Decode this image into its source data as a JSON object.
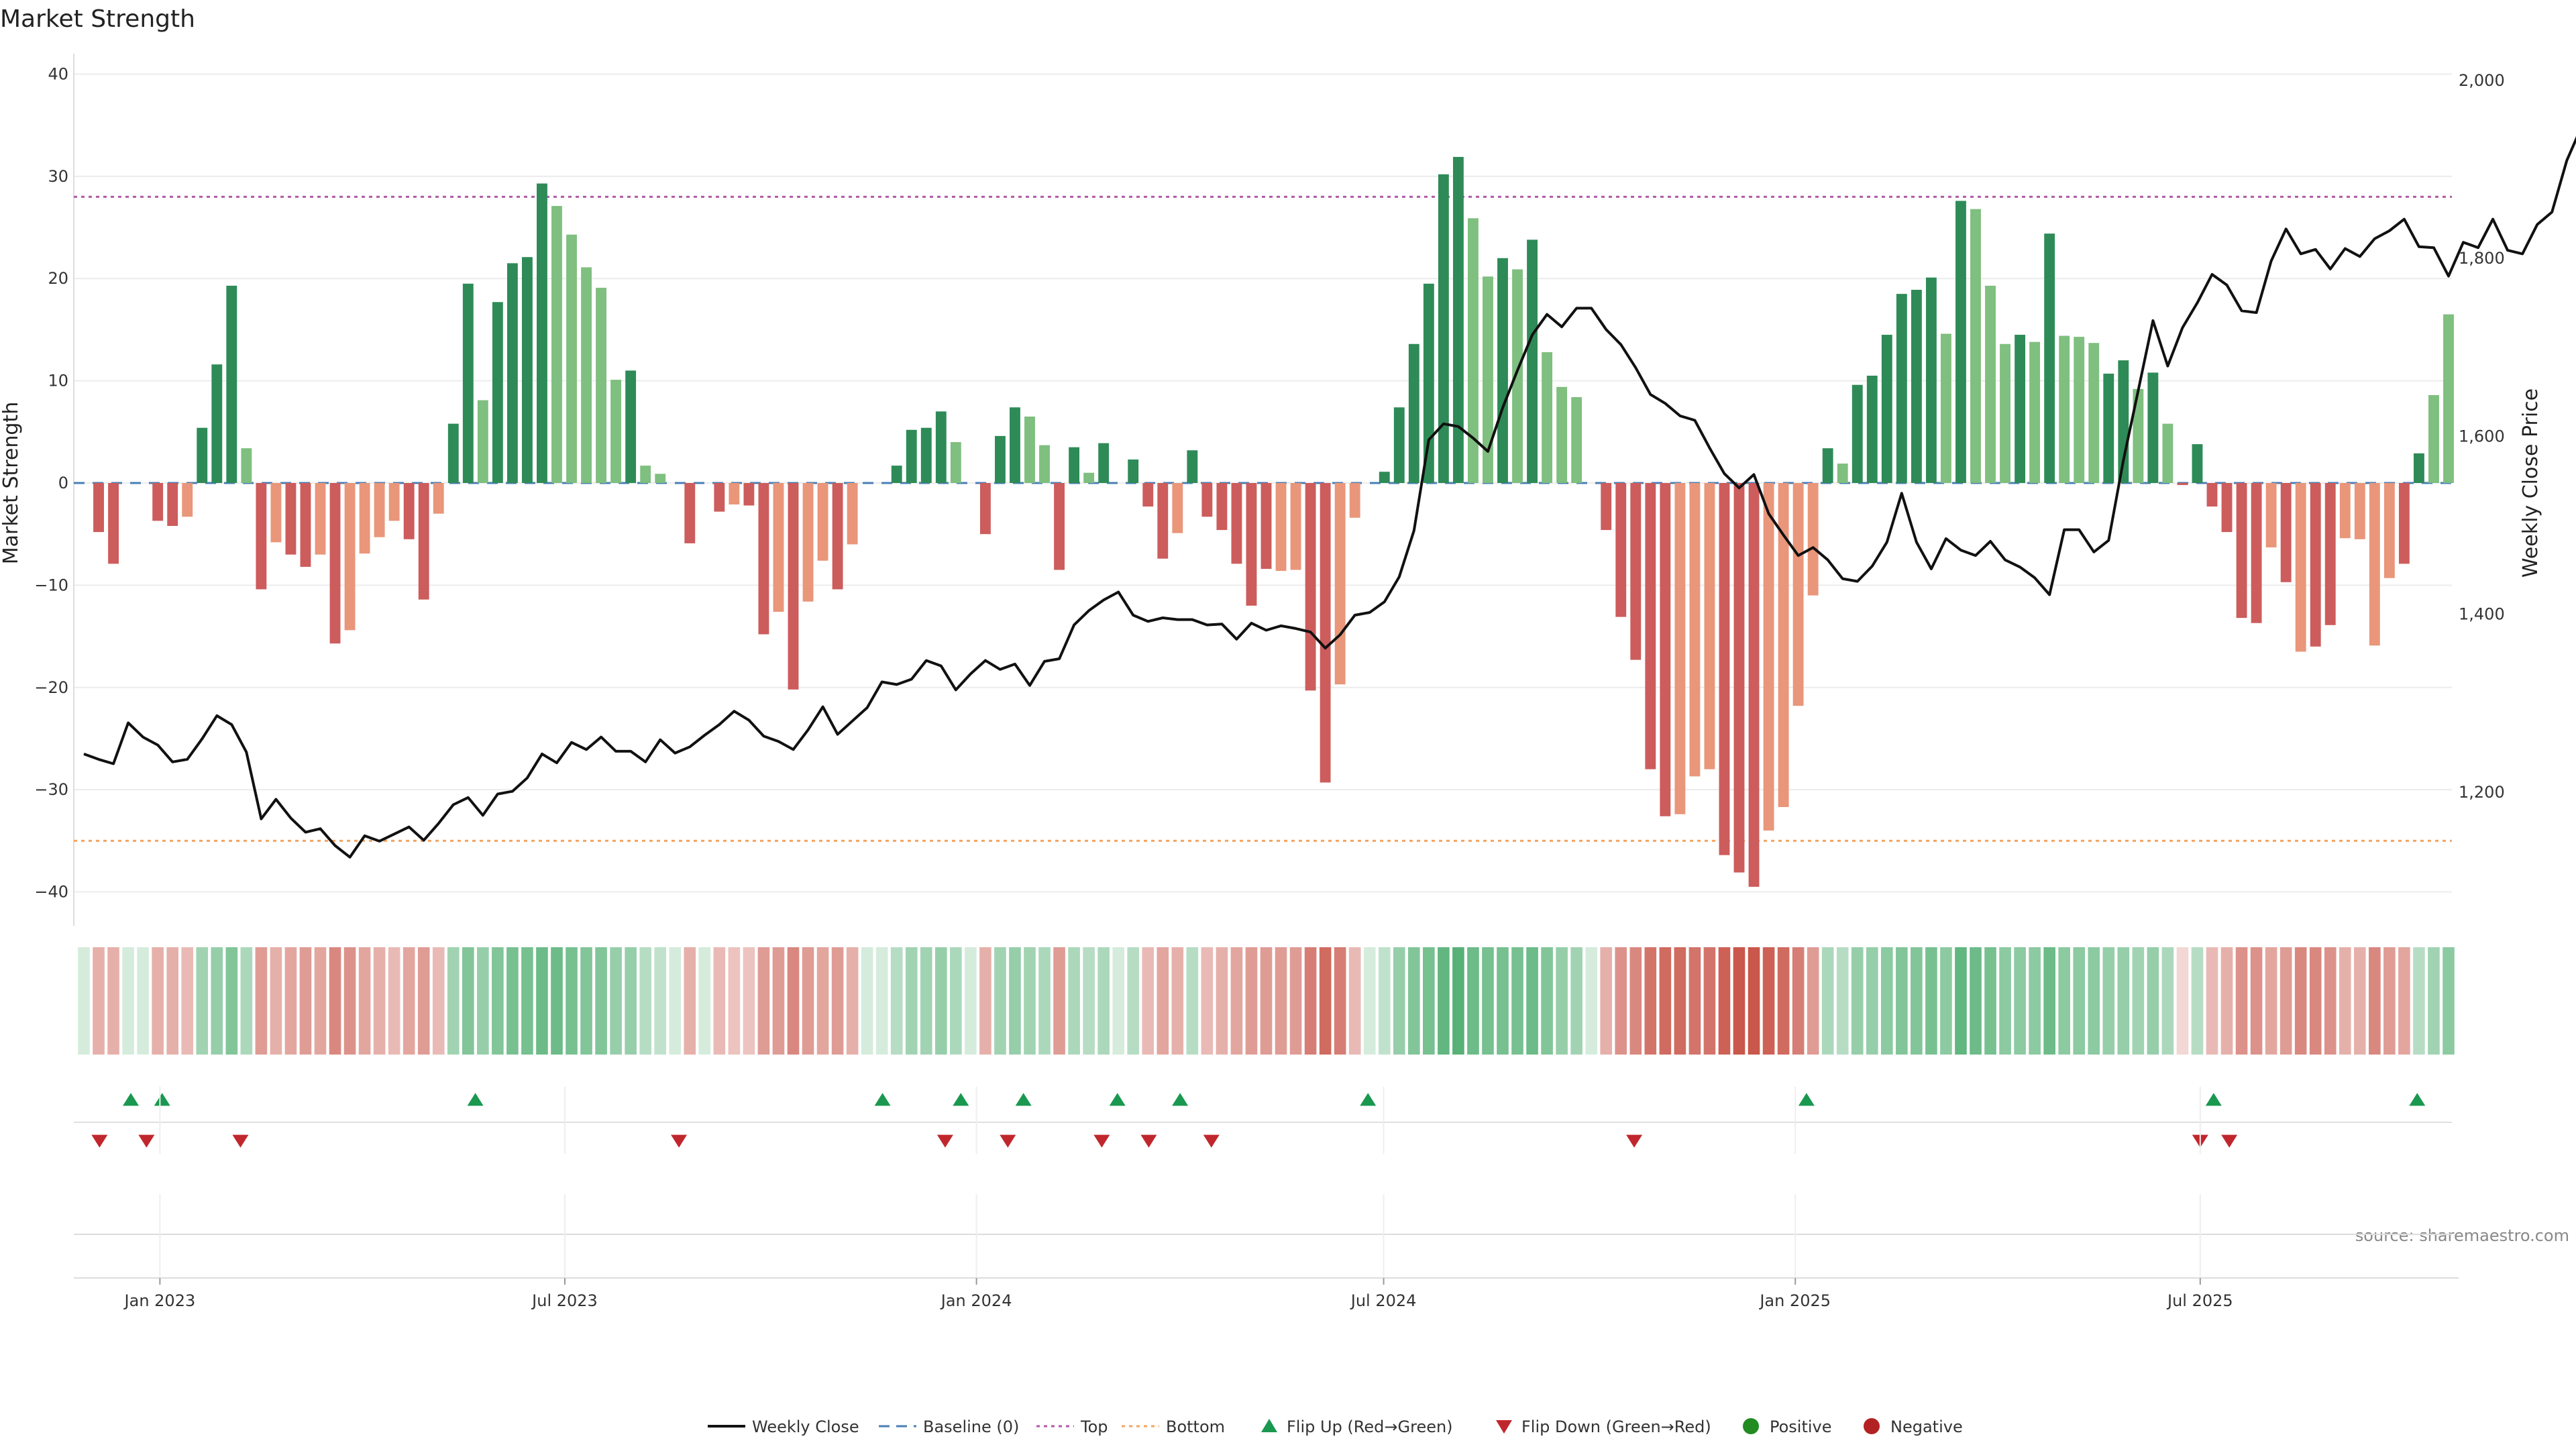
{
  "colors": {
    "pos_strong": "#2e8b57",
    "pos_weak": "#7fbf7f",
    "neg_strong": "#cd5c5c",
    "neg_weak": "#e9967a",
    "price_line": "#111111",
    "baseline": "#4a7fb5",
    "top": "#b05aa8",
    "bottom": "#f4a460",
    "flip_up": "#1a9850",
    "flip_down": "#c0272d",
    "positive": "#228b22",
    "negative": "#b22222"
  },
  "chart_data": {
    "type": "bar",
    "title": "Market Strength",
    "ylabel": "Market Strength",
    "y2label": "Weekly Close Price",
    "source": "source: sharemaestro.com",
    "ylim": [
      -42,
      42
    ],
    "y2lim": [
      1065,
      2030
    ],
    "yticks": [
      40,
      30,
      20,
      10,
      0,
      -10,
      -20,
      -30,
      -40
    ],
    "ytick_labels": [
      "40",
      "30",
      "20",
      "10",
      "0",
      "−10",
      "−20",
      "−30",
      "−40"
    ],
    "y2ticks": [
      2000,
      1800,
      1600,
      1400,
      1200
    ],
    "y2tick_labels": [
      "2,000",
      "1,800",
      "1,600",
      "1,400",
      "1,200"
    ],
    "x_start": "2022-11-28",
    "x_step_days": 7,
    "x_end": "2025-10-20",
    "xticks": [
      {
        "date": "2023-01-01",
        "label": "Jan 2023"
      },
      {
        "date": "2023-07-01",
        "label": "Jul 2023"
      },
      {
        "date": "2024-01-01",
        "label": "Jan 2024"
      },
      {
        "date": "2024-07-01",
        "label": "Jul 2024"
      },
      {
        "date": "2025-01-01",
        "label": "Jan 2025"
      },
      {
        "date": "2025-07-01",
        "label": "Jul 2025"
      }
    ],
    "top_level": 28,
    "bottom_level": -35,
    "strength": [
      0,
      -4.8,
      -7.9,
      0,
      0,
      -3.7,
      -4.2,
      -3.3,
      5.4,
      11.6,
      19.3,
      3.4,
      -10.4,
      -5.8,
      -7,
      -8.2,
      -7,
      -15.7,
      -14.4,
      -6.9,
      -5.3,
      -3.7,
      -5.5,
      -11.4,
      -3,
      5.8,
      19.5,
      8.1,
      17.7,
      21.5,
      22.1,
      29.3,
      27.1,
      24.3,
      21.1,
      19.1,
      10.1,
      11,
      1.7,
      0.9,
      0,
      -5.9,
      0,
      -2.8,
      -2.1,
      -2.2,
      -14.8,
      -12.6,
      -20.2,
      -11.6,
      -7.6,
      -10.4,
      -6,
      0,
      0,
      1.7,
      5.2,
      5.4,
      7,
      4,
      0,
      -5,
      4.6,
      7.4,
      6.5,
      3.7,
      -8.5,
      3.5,
      1,
      3.9,
      0,
      2.3,
      -2.3,
      -7.4,
      -4.9,
      3.2,
      -3.3,
      -4.6,
      -7.9,
      -12,
      -8.4,
      -8.6,
      -8.5,
      -20.3,
      -29.3,
      -19.7,
      -3.4,
      0,
      1.1,
      7.4,
      13.6,
      19.5,
      30.2,
      31.9,
      25.9,
      20.2,
      22,
      20.9,
      23.8,
      12.8,
      9.4,
      8.4,
      0,
      -4.6,
      -13.1,
      -17.3,
      -28,
      -32.6,
      -32.4,
      -28.7,
      -28,
      -36.4,
      -38.1,
      -39.5,
      -34,
      -31.7,
      -21.8,
      -11,
      3.4,
      1.9,
      9.6,
      10.5,
      14.5,
      18.5,
      18.9,
      20.1,
      14.6,
      27.6,
      26.8,
      19.3,
      13.6,
      14.5,
      13.8,
      24.4,
      14.4,
      14.3,
      13.7,
      10.7,
      12,
      9.2,
      10.8,
      5.8,
      -0.2,
      3.8,
      -2.3,
      -4.8,
      -13.2,
      -13.7,
      -6.3,
      -9.7,
      -16.5,
      -16,
      -13.9,
      -5.4,
      -5.5,
      -15.9,
      -9.3,
      -7.9,
      2.9,
      8.6,
      16.5
    ],
    "strength_tones": [
      "none",
      "strong",
      "strong",
      "none",
      "none",
      "strong",
      "strong",
      "weak",
      "strong",
      "strong",
      "strong",
      "weak",
      "strong",
      "weak",
      "strong",
      "strong",
      "weak",
      "strong",
      "weak",
      "weak",
      "weak",
      "weak",
      "strong",
      "strong",
      "weak",
      "strong",
      "strong",
      "weak",
      "strong",
      "strong",
      "strong",
      "strong",
      "weak",
      "weak",
      "weak",
      "weak",
      "weak",
      "strong",
      "weak",
      "weak",
      "none",
      "strong",
      "none",
      "strong",
      "weak",
      "strong",
      "strong",
      "weak",
      "strong",
      "weak",
      "weak",
      "strong",
      "weak",
      "none",
      "none",
      "strong",
      "strong",
      "strong",
      "strong",
      "weak",
      "none",
      "strong",
      "strong",
      "strong",
      "weak",
      "weak",
      "strong",
      "strong",
      "weak",
      "strong",
      "none",
      "strong",
      "strong",
      "strong",
      "weak",
      "strong",
      "strong",
      "strong",
      "strong",
      "strong",
      "strong",
      "weak",
      "weak",
      "strong",
      "strong",
      "weak",
      "weak",
      "none",
      "strong",
      "strong",
      "strong",
      "strong",
      "strong",
      "strong",
      "weak",
      "weak",
      "strong",
      "weak",
      "strong",
      "weak",
      "weak",
      "weak",
      "none",
      "strong",
      "strong",
      "strong",
      "strong",
      "strong",
      "weak",
      "weak",
      "weak",
      "strong",
      "strong",
      "strong",
      "weak",
      "weak",
      "weak",
      "weak",
      "strong",
      "weak",
      "strong",
      "strong",
      "strong",
      "strong",
      "strong",
      "strong",
      "weak",
      "strong",
      "weak",
      "weak",
      "weak",
      "strong",
      "weak",
      "strong",
      "weak",
      "weak",
      "weak",
      "strong",
      "strong",
      "weak",
      "strong",
      "weak",
      "strong",
      "strong",
      "strong",
      "strong",
      "strong",
      "strong",
      "weak",
      "strong",
      "weak",
      "strong",
      "strong",
      "weak",
      "weak",
      "weak",
      "weak",
      "strong",
      "strong",
      "weak",
      "weak",
      "weak",
      "strong",
      "strong"
    ],
    "weekly_close": [
      1243,
      1237,
      1232,
      1278,
      1262,
      1253,
      1234,
      1237,
      1260,
      1286,
      1276,
      1245,
      1170,
      1192,
      1171,
      1155,
      1159,
      1140,
      1127,
      1151,
      1145,
      1153,
      1161,
      1146,
      1165,
      1186,
      1194,
      1174,
      1198,
      1201,
      1216,
      1243,
      1233,
      1256,
      1248,
      1262,
      1246,
      1246,
      1234,
      1259,
      1244,
      1251,
      1264,
      1276,
      1291,
      1281,
      1263,
      1257,
      1248,
      1270,
      1296,
      1265,
      1280,
      1295,
      1324,
      1321,
      1327,
      1348,
      1342,
      1315,
      1333,
      1348,
      1338,
      1344,
      1320,
      1347,
      1350,
      1388,
      1404,
      1416,
      1425,
      1399,
      1392,
      1396,
      1394,
      1394,
      1388,
      1389,
      1372,
      1390,
      1382,
      1387,
      1384,
      1380,
      1362,
      1377,
      1399,
      1402,
      1414,
      1442,
      1494,
      1596,
      1614,
      1611,
      1598,
      1583,
      1632,
      1674,
      1714,
      1737,
      1723,
      1744,
      1744,
      1720,
      1703,
      1677,
      1647,
      1637,
      1623,
      1618,
      1587,
      1558,
      1542,
      1557,
      1513,
      1489,
      1466,
      1475,
      1461,
      1440,
      1437,
      1454,
      1481,
      1536,
      1481,
      1451,
      1485,
      1472,
      1466,
      1482,
      1461,
      1453,
      1441,
      1422,
      1495,
      1495,
      1470,
      1483,
      1573,
      1651,
      1730,
      1679,
      1722,
      1750,
      1782,
      1770,
      1741,
      1739,
      1797,
      1833,
      1805,
      1810,
      1788,
      1811,
      1802,
      1822,
      1831,
      1844,
      1813,
      1812,
      1780,
      1818,
      1812,
      1844,
      1809,
      1805,
      1838,
      1852,
      1910,
      1948
    ]
  },
  "heat_strip": {
    "alpha": [
      0.2,
      0.4,
      0.4,
      0.2,
      0.2,
      0.4,
      0.4,
      0.35,
      0.45,
      0.5,
      0.6,
      0.4,
      0.5,
      0.4,
      0.45,
      0.5,
      0.45,
      0.6,
      0.55,
      0.45,
      0.4,
      0.35,
      0.45,
      0.5,
      0.35,
      0.45,
      0.6,
      0.5,
      0.6,
      0.65,
      0.65,
      0.7,
      0.7,
      0.65,
      0.6,
      0.6,
      0.5,
      0.5,
      0.35,
      0.3,
      0.2,
      0.4,
      0.2,
      0.35,
      0.3,
      0.3,
      0.5,
      0.5,
      0.6,
      0.5,
      0.45,
      0.5,
      0.4,
      0.2,
      0.2,
      0.35,
      0.45,
      0.45,
      0.5,
      0.4,
      0.2,
      0.4,
      0.45,
      0.5,
      0.45,
      0.4,
      0.5,
      0.4,
      0.35,
      0.4,
      0.2,
      0.35,
      0.35,
      0.45,
      0.4,
      0.35,
      0.35,
      0.4,
      0.45,
      0.5,
      0.5,
      0.5,
      0.5,
      0.65,
      0.75,
      0.65,
      0.35,
      0.2,
      0.3,
      0.5,
      0.6,
      0.65,
      0.75,
      0.8,
      0.7,
      0.65,
      0.65,
      0.65,
      0.7,
      0.6,
      0.5,
      0.45,
      0.2,
      0.4,
      0.55,
      0.6,
      0.7,
      0.75,
      0.75,
      0.7,
      0.7,
      0.8,
      0.85,
      0.85,
      0.8,
      0.75,
      0.65,
      0.5,
      0.4,
      0.35,
      0.5,
      0.5,
      0.55,
      0.6,
      0.6,
      0.65,
      0.55,
      0.75,
      0.7,
      0.65,
      0.55,
      0.55,
      0.55,
      0.7,
      0.55,
      0.55,
      0.55,
      0.5,
      0.5,
      0.45,
      0.5,
      0.4,
      0.2,
      0.35,
      0.35,
      0.4,
      0.55,
      0.55,
      0.45,
      0.5,
      0.6,
      0.6,
      0.55,
      0.4,
      0.4,
      0.6,
      0.5,
      0.45,
      0.35,
      0.45,
      0.55
    ]
  },
  "flip_up_dates": [
    "2022-12-19",
    "2023-01-02",
    "2023-05-22",
    "2023-11-20",
    "2023-12-25",
    "2024-01-22",
    "2024-03-04",
    "2024-04-01",
    "2024-06-24",
    "2025-01-06",
    "2025-07-07",
    "2025-10-06"
  ],
  "flip_down_dates": [
    "2022-12-05",
    "2022-12-26",
    "2023-02-06",
    "2023-08-21",
    "2023-12-18",
    "2024-01-15",
    "2024-02-26",
    "2024-03-18",
    "2024-04-15",
    "2024-10-21",
    "2025-07-01",
    "2025-07-14"
  ],
  "legend": [
    {
      "key": "weekly_close",
      "label": "Weekly Close",
      "symbol": "line"
    },
    {
      "key": "baseline",
      "label": "Baseline (0)",
      "symbol": "dash"
    },
    {
      "key": "top",
      "label": "Top",
      "symbol": "dot"
    },
    {
      "key": "bottom",
      "label": "Bottom",
      "symbol": "dot"
    },
    {
      "key": "flip_up",
      "label": "Flip Up (Red→Green)",
      "symbol": "tri-up"
    },
    {
      "key": "flip_down",
      "label": "Flip Down (Green→Red)",
      "symbol": "tri-down"
    },
    {
      "key": "positive",
      "label": "Positive",
      "symbol": "circle"
    },
    {
      "key": "negative",
      "label": "Negative",
      "symbol": "circle"
    }
  ]
}
